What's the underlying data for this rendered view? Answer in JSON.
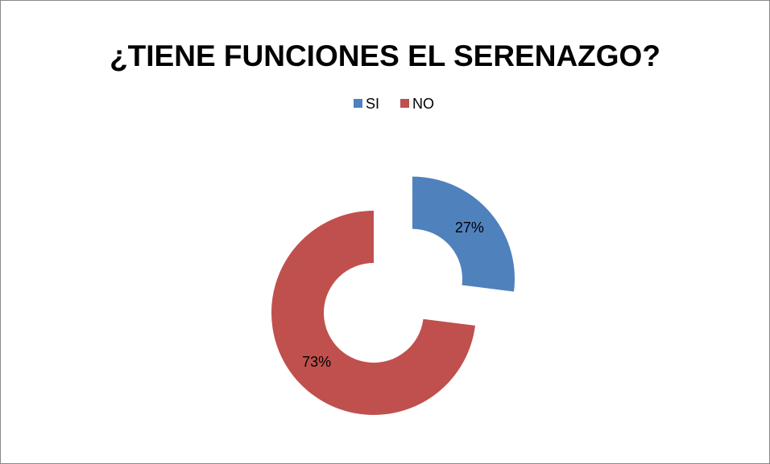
{
  "chart_data": {
    "type": "donut",
    "title": "¿TIENE FUNCIONES EL SERENAZGO?",
    "categories": [
      "SI",
      "NO"
    ],
    "values": [
      27,
      73
    ],
    "value_labels": [
      "27%",
      "73%"
    ],
    "colors": [
      "#4f81bd",
      "#c0504d"
    ],
    "legend": "top"
  }
}
